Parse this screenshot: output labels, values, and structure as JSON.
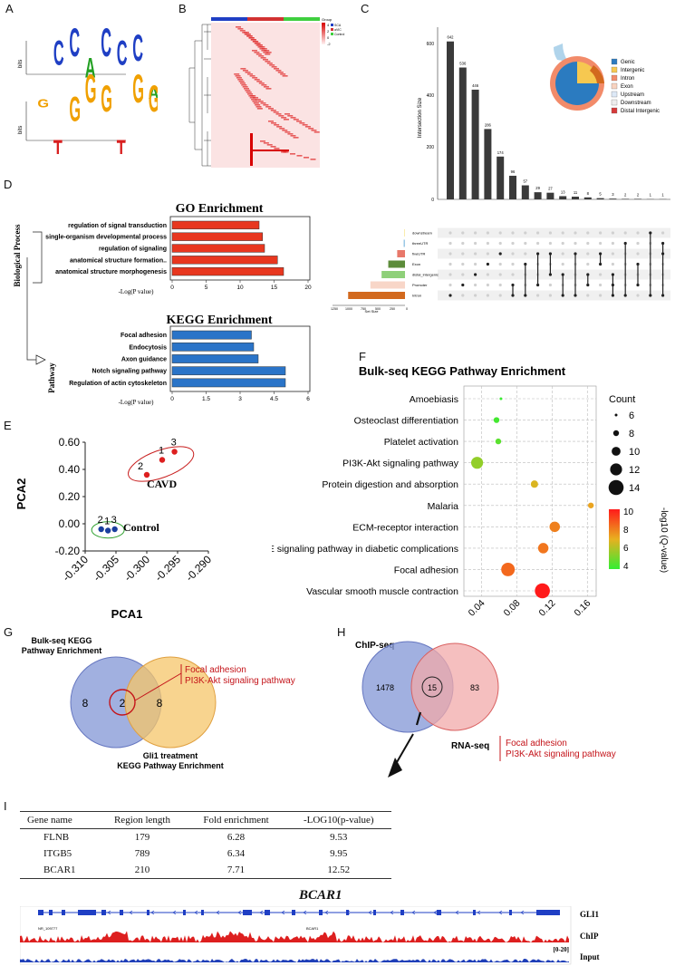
{
  "panels": {
    "A": "A",
    "B": "B",
    "C": "C",
    "D": "D",
    "E": "E",
    "F": "F",
    "G": "G",
    "H": "H",
    "I": "I"
  },
  "panelA": {
    "ylabel": "bits",
    "motif1": [
      "G",
      "C",
      "C",
      "A",
      "C",
      "C",
      "C",
      "A",
      "G"
    ],
    "motif2": [
      "C",
      "T",
      "G",
      "G",
      "G",
      "T",
      "G",
      "G",
      "C"
    ]
  },
  "panelB": {
    "legend_title": "Group",
    "groups": [
      "SCA",
      "aVIC",
      "Control"
    ],
    "group_colors": [
      "#1f3fc4",
      "#d23232",
      "#3fcf3f"
    ],
    "scale": [
      "4",
      "2",
      "0",
      "-2"
    ]
  },
  "panelC": {
    "ylabel": "Intersection Size",
    "yticks": [
      "600",
      "400",
      "200",
      "0"
    ],
    "bars": [
      642,
      536,
      446,
      286,
      174,
      96,
      57,
      29,
      27,
      13,
      11,
      8,
      5,
      3,
      2,
      2,
      1,
      1
    ],
    "sets": [
      "downstream",
      "threeUTR",
      "fiveUTR",
      "Exon",
      "distal_intergenic",
      "Promoter",
      "Intron"
    ],
    "set_sizes": [
      10,
      25,
      140,
      300,
      420,
      620,
      1020
    ],
    "set_colors": [
      "#f6e07a",
      "#9cc9e6",
      "#e8786a",
      "#5c8c3a",
      "#8fd07a",
      "#f8d6c8",
      "#d2691e"
    ],
    "set_axis_ticks": [
      "1250",
      "1000",
      "750",
      "500",
      "250",
      "0"
    ],
    "set_size_label": "Set Size",
    "legend": [
      "Genic",
      "Intergenic",
      "Intron",
      "Exon",
      "Upstream",
      "Downstream",
      "Distal Intergenic"
    ],
    "legend_colors": [
      "#2b7bc0",
      "#f6c850",
      "#f28b6a",
      "#f8d3c0",
      "#dde9f7",
      "#eeeeee",
      "#d63a3a"
    ]
  },
  "panelD": {
    "side_label": "Biological Process",
    "pathway_label": "Pathway",
    "go": {
      "title": "GO Enrichment",
      "terms": [
        "regulation of signal transduction",
        "single-organism developmental process",
        "regulation of signaling",
        "anatomical structure formation..",
        "anatomical structure morphogenesis"
      ],
      "values": [
        12.8,
        13.3,
        13.6,
        15.5,
        16.4
      ],
      "max": 20,
      "ticks": [
        "0",
        "5",
        "10",
        "15",
        "20"
      ],
      "xlabel": "-Log(P value)"
    },
    "kegg": {
      "title": "KEGG Enrichment",
      "terms": [
        "Focal adhesion",
        "Endocytosis",
        "Axon guidance",
        "Notch signaling pathway",
        "Regulation of actin cytoskeleton"
      ],
      "values": [
        3.5,
        3.6,
        3.8,
        5.0,
        5.0
      ],
      "max": 6,
      "ticks": [
        "0",
        "1.5",
        "3",
        "4.5",
        "6"
      ],
      "xlabel": "-Log(P value)"
    }
  },
  "chart_data": [
    {
      "type": "scatter",
      "title": "",
      "xlabel": "PCA1",
      "ylabel": "PCA2",
      "xlim": [
        -0.31,
        -0.29
      ],
      "ylim": [
        -0.2,
        0.6
      ],
      "xticks": [
        "-0.310",
        "-0.305",
        "-0.300",
        "-0.295",
        "-0.290"
      ],
      "yticks": [
        "0.60",
        "0.40",
        "0.20",
        "0.00",
        "-0.20"
      ],
      "series": [
        {
          "name": "CAVD",
          "color": "#dd1f1f",
          "points": [
            {
              "label": "1",
              "x": -0.2975,
              "y": 0.47
            },
            {
              "label": "2",
              "x": -0.3,
              "y": 0.36
            },
            {
              "label": "3",
              "x": -0.2955,
              "y": 0.53
            }
          ]
        },
        {
          "name": "Control",
          "color": "#1a3f9e",
          "points": [
            {
              "label": "2",
              "x": -0.3074,
              "y": -0.04
            },
            {
              "label": "1",
              "x": -0.3063,
              "y": -0.05
            },
            {
              "label": "3",
              "x": -0.3052,
              "y": -0.04
            }
          ]
        }
      ]
    },
    {
      "type": "scatter",
      "title": "Bulk-seq KEGG Pathway Enrichment",
      "xlabel": "",
      "ylabel": "",
      "xlim": [
        0.02,
        0.17
      ],
      "xticks": [
        "0.04",
        "0.08",
        "0.12",
        "0.16"
      ],
      "pathways": [
        "Amoebiasis",
        "Osteoclast differentiation",
        "Platelet activation",
        "PI3K-Akt signaling pathway",
        "Protein digestion and absorption",
        "Malaria",
        "ECM-receptor interaction",
        "AGE-RAGE signaling pathway in diabetic complications",
        "Focal adhesion",
        "Vascular smooth muscle contraction"
      ],
      "x": [
        0.062,
        0.057,
        0.059,
        0.035,
        0.1,
        0.164,
        0.123,
        0.11,
        0.07,
        0.109
      ],
      "counts": [
        6,
        8,
        8,
        12,
        9,
        8,
        11,
        11,
        13,
        14
      ],
      "qvalue": [
        3.6,
        3.8,
        4.2,
        5.2,
        6.5,
        7.0,
        7.8,
        8.0,
        8.3,
        10.0
      ],
      "size_legend_title": "Count",
      "size_legend": [
        "6",
        "8",
        "10",
        "12",
        "14"
      ],
      "color_legend_title": "-log10 (Q-value)",
      "color_legend": [
        "10",
        "8",
        "6",
        "4"
      ]
    }
  ],
  "panelE": {
    "group1_label": "CAVD",
    "group2_label": "Control"
  },
  "panelG": {
    "left_title_1": "Bulk-seq KEGG",
    "left_title_2": "Pathway Enrichment",
    "right_title_1": "Gli1 treatment",
    "right_title_2": "KEGG Pathway Enrichment",
    "left_only": "8",
    "overlap": "2",
    "right_only": "8",
    "annot_1": "Focal adhesion",
    "annot_2": "PI3K-Akt signaling pathway"
  },
  "panelH": {
    "left_title": "ChIP-seq",
    "right_title": "RNA-seq",
    "left_only": "1478",
    "overlap": "15",
    "right_only": "83",
    "annot_1": "Focal adhesion",
    "annot_2": "PI3K-Akt signaling pathway"
  },
  "panelI": {
    "headers": [
      "Gene name",
      "Region length",
      "Fold enrichment",
      "-LOG10(p-value)"
    ],
    "rows": [
      [
        "FLNB",
        "179",
        "6.28",
        "9.53"
      ],
      [
        "ITGB5",
        "789",
        "6.34",
        "9.95"
      ],
      [
        "BCAR1",
        "210",
        "7.71",
        "12.52"
      ]
    ],
    "gene_title": "BCAR1",
    "refseq_label": "NR_109777",
    "gene_label": "BCAR1",
    "scale_label": "[0-20]",
    "tracks": [
      "GLI1",
      "ChIP",
      "Input"
    ]
  }
}
